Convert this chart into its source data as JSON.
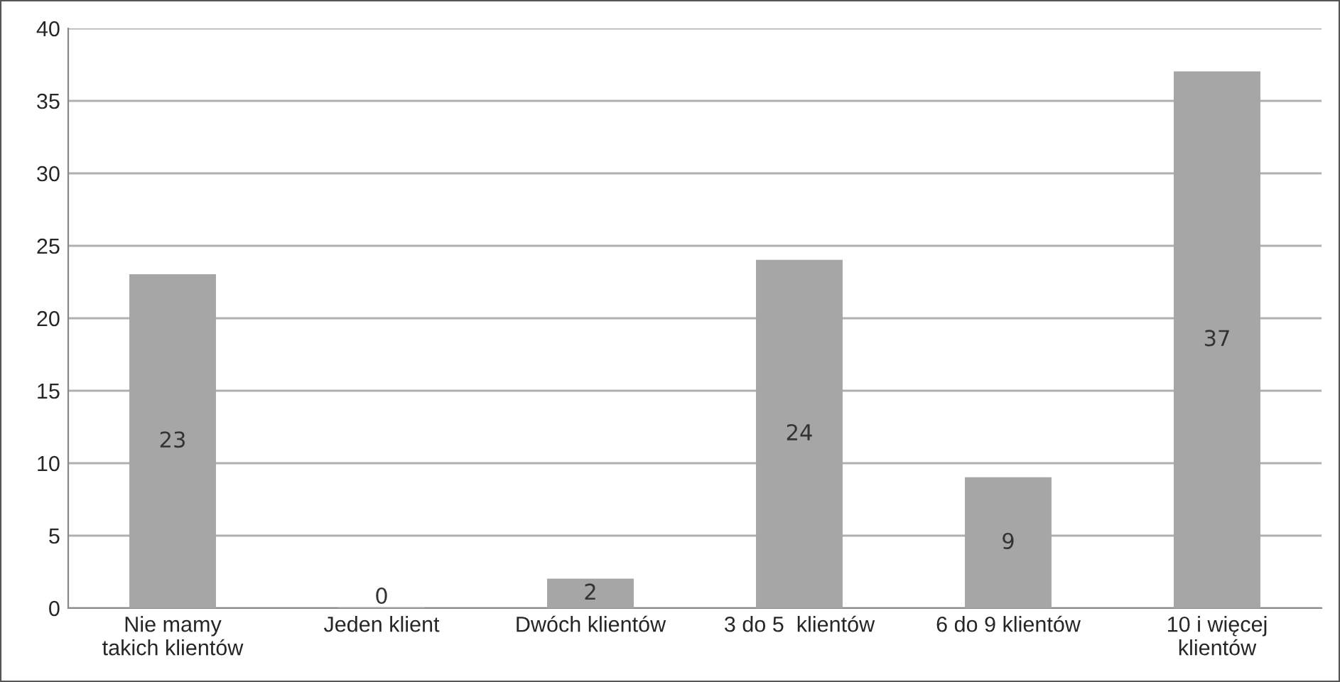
{
  "chart_data": {
    "type": "bar",
    "categories": [
      "Nie mamy\ntakich klientów",
      "Jeden klient",
      "Dwóch klientów",
      "3 do 5  klientów",
      "6 do 9 klientów",
      "10 i więcej\nklientów"
    ],
    "values": [
      23,
      0,
      2,
      24,
      9,
      37
    ],
    "color": "#a6a6a6",
    "ylim": [
      0,
      40
    ],
    "yticks": [
      0,
      5,
      10,
      15,
      20,
      25,
      30,
      35,
      40
    ],
    "grid": "y",
    "data_labels": true
  }
}
